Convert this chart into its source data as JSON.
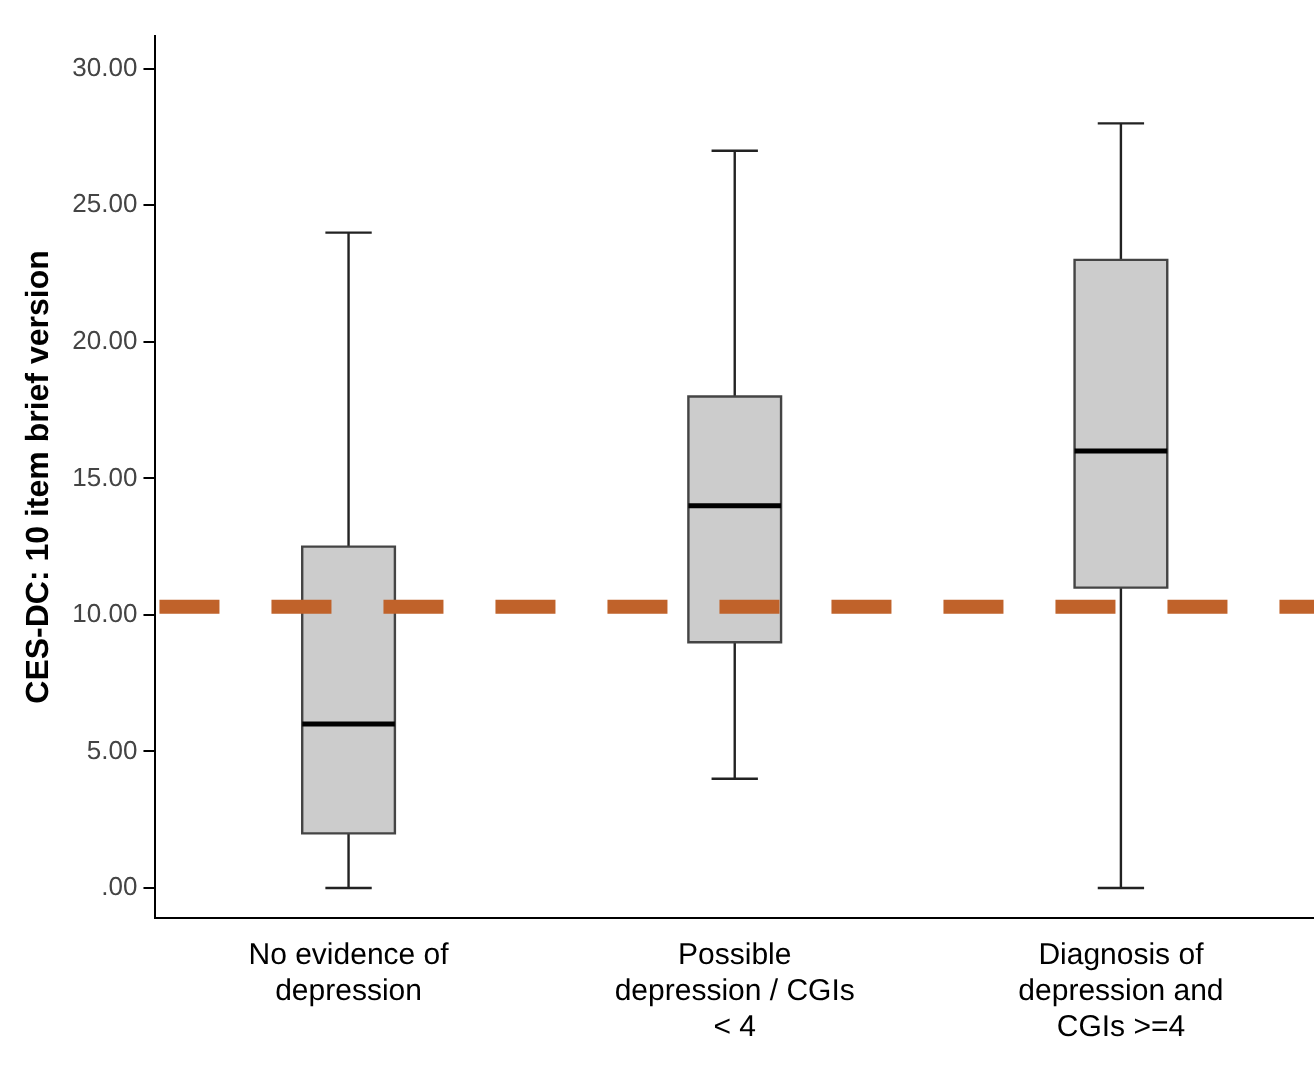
{
  "chart_data": {
    "type": "box",
    "ylabel": "CES-DC: 10 item brief version",
    "categories": [
      "No evidence of depression",
      "Possible depression / CGIs < 4",
      "Diagnosis of depression and CGIs >=4"
    ],
    "color": "#cccccc",
    "boxes": [
      {
        "low": 0,
        "q1": 2,
        "median": 6,
        "q3": 12.5,
        "high": 24
      },
      {
        "low": 4,
        "q1": 9,
        "median": 14,
        "q3": 18,
        "high": 27
      },
      {
        "low": 0,
        "q1": 11,
        "median": 16,
        "q3": 23,
        "high": 28
      }
    ],
    "ylim": [
      -1.1,
      31.2
    ],
    "yticks": [
      {
        "value": 0,
        "label": ".00"
      },
      {
        "value": 5,
        "label": "5.00"
      },
      {
        "value": 10,
        "label": "10.00"
      },
      {
        "value": 15,
        "label": "15.00"
      },
      {
        "value": 20,
        "label": "20.00"
      },
      {
        "value": 25,
        "label": "25.00"
      },
      {
        "value": 30,
        "label": "30.00"
      }
    ],
    "ref_lines": [
      {
        "axis": "y",
        "value": 10.3,
        "color": "#c0622a",
        "line_style": "dashed"
      }
    ],
    "grid": false
  }
}
